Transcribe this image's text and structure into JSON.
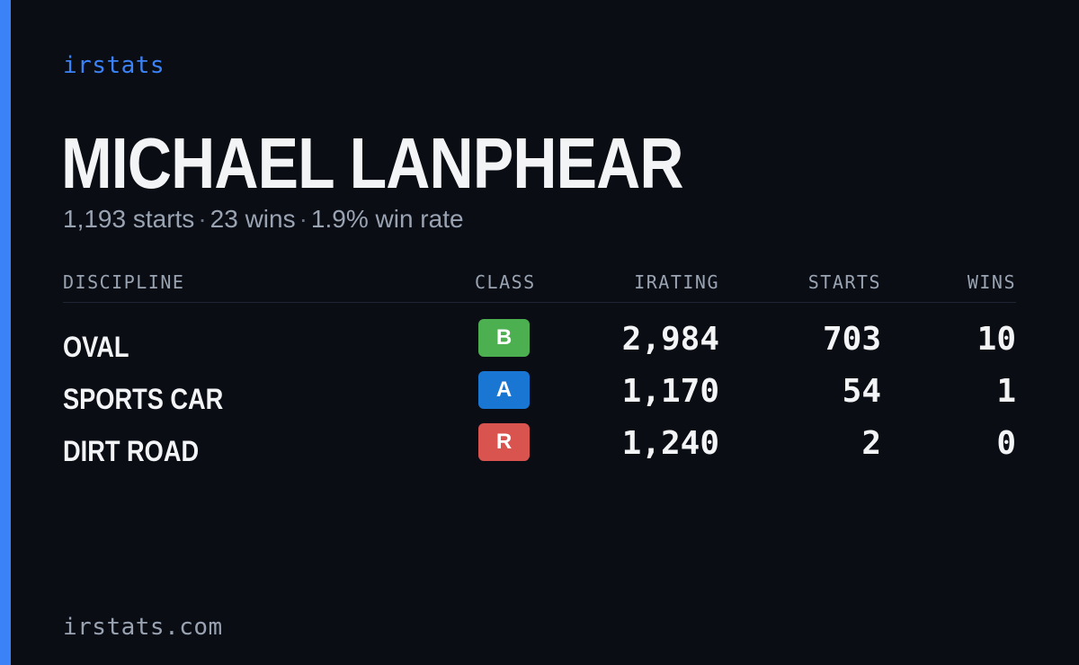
{
  "brand": {
    "name": "irstats",
    "accent_color": "#3b82f6"
  },
  "driver": {
    "name": "MICHAEL LANPHEAR",
    "starts_text": "1,193 starts",
    "wins_text": "23 wins",
    "win_rate_text": "1.9% win rate",
    "separator": "·"
  },
  "table": {
    "headers": {
      "discipline": "DISCIPLINE",
      "class": "CLASS",
      "irating": "IRATING",
      "starts": "STARTS",
      "wins": "WINS"
    },
    "rows": [
      {
        "discipline": "OVAL",
        "class": "B",
        "class_color": "#4caf50",
        "irating": "2,984",
        "starts": "703",
        "wins": "10"
      },
      {
        "discipline": "SPORTS CAR",
        "class": "A",
        "class_color": "#1976d2",
        "irating": "1,170",
        "starts": "54",
        "wins": "1"
      },
      {
        "discipline": "DIRT ROAD",
        "class": "R",
        "class_color": "#d9534f",
        "irating": "1,240",
        "starts": "2",
        "wins": "0"
      }
    ]
  },
  "footer": {
    "url_text": "irstats.com"
  }
}
